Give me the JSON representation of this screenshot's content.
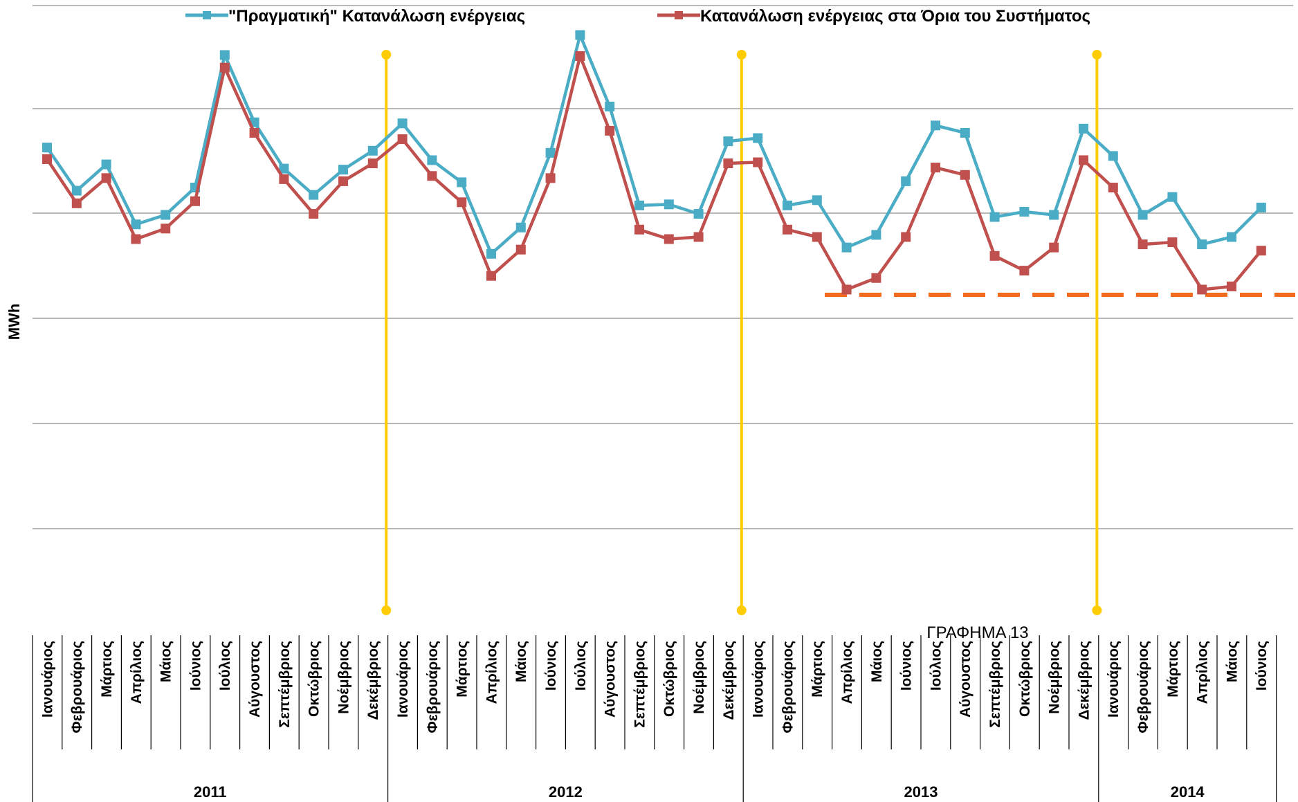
{
  "chart_data": {
    "type": "line",
    "ylabel": "MWh",
    "caption": "ΓΡΑΦΗΜΑ 13",
    "grid": true,
    "y_axis_labels_shown": false,
    "legend_position": "top",
    "categories": [
      "Ιανουάριος",
      "Φεβρουάριος",
      "Μάρτιος",
      "Απρίλιος",
      "Μάιος",
      "Ιούνιος",
      "Ιούλιος",
      "Αύγουστος",
      "Σεπτέμβριος",
      "Οκτώβριος",
      "Νοέμβριος",
      "Δεκέμβριος",
      "Ιανουάριος",
      "Φεβρουάριος",
      "Μάρτιος",
      "Απρίλιος",
      "Μάιος",
      "Ιούνιος",
      "Ιούλιος",
      "Αύγουστος",
      "Σεπτέμβριος",
      "Οκτώβριος",
      "Νοέμβριος",
      "Δεκέμβριος",
      "Ιανουάριος",
      "Φεβρουάριος",
      "Μάρτιος",
      "Απρίλιος",
      "Μάιος",
      "Ιούνιος",
      "Ιούλιος",
      "Αύγουστος",
      "Σεπτέμβριος",
      "Οκτώβριος",
      "Νοέμβριος",
      "Δεκέμβριος",
      "Ιανουάριος",
      "Φεβρουάριος",
      "Μάρτιος",
      "Απρίλιος",
      "Μάιος",
      "Ιούνιος"
    ],
    "year_groups": [
      {
        "label": "2011",
        "count": 12
      },
      {
        "label": "2012",
        "count": 12
      },
      {
        "label": "2013",
        "count": 12
      },
      {
        "label": "2014",
        "count": 6
      }
    ],
    "series": [
      {
        "name": "\"Πραγματική\" Κατανάλωση ενέργειας",
        "color": "#4BACC6",
        "values": [
          5.62,
          5.21,
          5.46,
          4.89,
          4.98,
          5.24,
          6.5,
          5.86,
          5.42,
          5.17,
          5.41,
          5.59,
          5.85,
          5.5,
          5.29,
          4.61,
          4.86,
          5.57,
          6.69,
          6.01,
          5.07,
          5.08,
          4.99,
          5.68,
          5.71,
          5.07,
          5.12,
          4.67,
          4.79,
          5.3,
          5.83,
          5.76,
          4.96,
          5.01,
          4.98,
          5.8,
          5.54,
          4.98,
          5.15,
          4.7,
          4.77,
          5.05
        ]
      },
      {
        "name": "Κατανάλωση ενέργειας στα Όρια του Συστήματος",
        "color": "#C0504D",
        "values": [
          5.51,
          5.09,
          5.33,
          4.75,
          4.85,
          5.11,
          6.38,
          5.76,
          5.32,
          4.99,
          5.3,
          5.47,
          5.7,
          5.35,
          5.1,
          4.4,
          4.65,
          5.33,
          6.49,
          5.78,
          4.84,
          4.75,
          4.77,
          5.47,
          5.48,
          4.84,
          4.77,
          4.27,
          4.38,
          4.77,
          5.43,
          5.36,
          4.59,
          4.45,
          4.67,
          5.5,
          5.24,
          4.7,
          4.72,
          4.27,
          4.3,
          4.64
        ]
      }
    ],
    "year_divider_color": "#FFCC00",
    "threshold_line": {
      "value": 4.22,
      "color": "#F26A1B",
      "style": "dashed"
    }
  }
}
